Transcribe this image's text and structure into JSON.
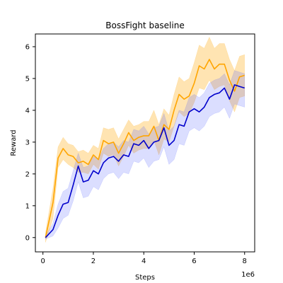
{
  "chart_data": {
    "type": "line",
    "title": "BossFight baseline",
    "xlabel": "Steps",
    "ylabel": "Reward",
    "x_offset_label": "1e6",
    "xlim": [
      -0.3,
      8.4
    ],
    "ylim": [
      -0.45,
      6.4
    ],
    "xticks": [
      0,
      2,
      4,
      6,
      8
    ],
    "yticks": [
      0,
      1,
      2,
      3,
      4,
      5,
      6
    ],
    "grid": false,
    "legend": "none",
    "x": [
      0.1,
      0.4,
      0.6,
      0.8,
      1.0,
      1.2,
      1.4,
      1.6,
      1.8,
      2.0,
      2.2,
      2.4,
      2.6,
      2.8,
      3.0,
      3.2,
      3.4,
      3.6,
      3.8,
      4.0,
      4.2,
      4.4,
      4.6,
      4.8,
      5.0,
      5.2,
      5.4,
      5.6,
      5.8,
      6.0,
      6.2,
      6.4,
      6.6,
      6.8,
      7.0,
      7.2,
      7.4,
      7.6,
      7.8,
      8.0
    ],
    "series": [
      {
        "color": "#ffa500",
        "band_color": "#ffa500",
        "values": [
          0.0,
          1.1,
          2.5,
          2.8,
          2.6,
          2.55,
          2.35,
          2.4,
          2.3,
          2.6,
          2.45,
          3.05,
          2.95,
          3.0,
          2.65,
          2.95,
          3.3,
          3.05,
          3.15,
          3.2,
          3.2,
          3.5,
          3.05,
          3.55,
          3.4,
          4.0,
          4.5,
          4.35,
          4.45,
          4.85,
          5.4,
          5.3,
          5.6,
          5.3,
          5.45,
          5.45,
          4.95,
          4.6,
          5.05,
          5.1
        ],
        "lower": [
          -0.15,
          0.6,
          2.2,
          2.45,
          2.3,
          2.2,
          2.05,
          2.05,
          2.0,
          2.3,
          2.15,
          2.65,
          2.55,
          2.6,
          2.25,
          2.55,
          2.9,
          2.65,
          2.75,
          2.8,
          2.8,
          3.05,
          2.6,
          3.1,
          3.0,
          3.5,
          3.95,
          3.8,
          3.9,
          4.25,
          4.7,
          4.65,
          4.95,
          4.65,
          4.75,
          4.8,
          4.3,
          3.95,
          4.4,
          4.45
        ],
        "upper": [
          0.15,
          1.55,
          2.85,
          3.15,
          2.95,
          2.9,
          2.7,
          2.75,
          2.65,
          2.9,
          2.8,
          3.45,
          3.4,
          3.45,
          3.1,
          3.4,
          3.7,
          3.5,
          3.55,
          3.65,
          3.65,
          4.0,
          3.55,
          4.05,
          3.85,
          4.5,
          5.05,
          4.9,
          5.0,
          5.5,
          6.05,
          5.95,
          6.3,
          5.95,
          6.1,
          6.1,
          5.6,
          5.25,
          5.7,
          5.75
        ]
      },
      {
        "color": "#0000cc",
        "band_color": "#4a5cff",
        "values": [
          0.0,
          0.25,
          0.7,
          1.05,
          1.1,
          1.65,
          2.25,
          1.75,
          1.8,
          2.1,
          2.0,
          2.35,
          2.5,
          2.55,
          2.4,
          2.6,
          2.55,
          2.95,
          2.9,
          3.05,
          2.8,
          3.0,
          3.05,
          3.45,
          2.9,
          3.05,
          3.55,
          3.5,
          3.95,
          4.05,
          3.95,
          4.1,
          4.4,
          4.5,
          4.55,
          4.7,
          4.35,
          4.8,
          4.75,
          4.7
        ],
        "lower": [
          -0.05,
          0.05,
          0.3,
          0.6,
          0.7,
          1.15,
          1.75,
          1.25,
          1.3,
          1.6,
          1.5,
          1.85,
          2.0,
          2.05,
          1.85,
          2.05,
          2.0,
          2.4,
          2.35,
          2.5,
          2.2,
          2.4,
          2.45,
          2.85,
          2.3,
          2.45,
          2.95,
          2.9,
          3.35,
          3.45,
          3.35,
          3.5,
          3.8,
          3.9,
          3.95,
          4.1,
          3.75,
          4.2,
          4.15,
          4.1
        ],
        "upper": [
          0.05,
          0.45,
          1.05,
          1.45,
          1.55,
          2.1,
          2.65,
          2.2,
          2.25,
          2.55,
          2.45,
          2.8,
          2.95,
          3.0,
          2.85,
          3.05,
          3.0,
          3.4,
          3.35,
          3.5,
          3.25,
          3.45,
          3.5,
          3.9,
          3.35,
          3.5,
          4.0,
          3.95,
          4.4,
          4.5,
          4.4,
          4.55,
          4.85,
          4.95,
          5.0,
          5.15,
          4.8,
          5.25,
          5.2,
          5.15
        ]
      }
    ]
  }
}
